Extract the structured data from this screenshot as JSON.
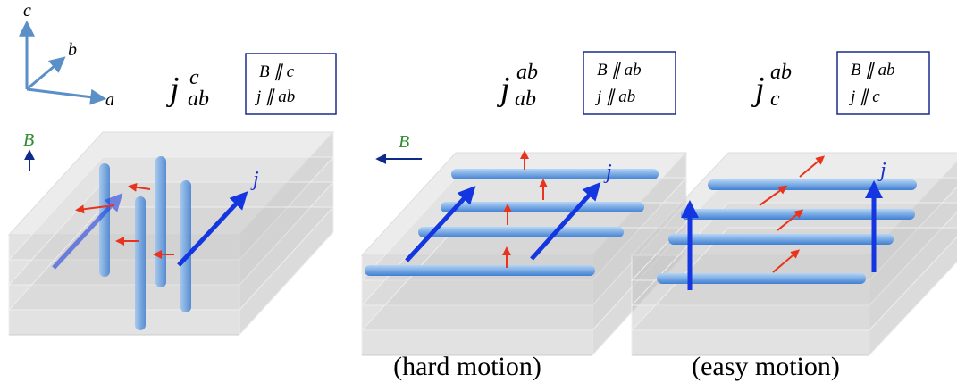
{
  "axes": {
    "c": "c",
    "b": "b",
    "a": "a"
  },
  "panels": [
    {
      "symbol": "j",
      "superscript": "c",
      "subscript": "ab",
      "conditions": [
        "B ∥ c",
        "j ∥ ab"
      ],
      "field_label": "B",
      "current_label": "j"
    },
    {
      "symbol": "j",
      "superscript": "ab",
      "subscript": "ab",
      "conditions": [
        "B ∥ ab",
        "j ∥ ab"
      ],
      "field_label": "B",
      "current_label": "j",
      "caption": "(hard motion)"
    },
    {
      "symbol": "j",
      "superscript": "ab",
      "subscript": "c",
      "conditions": [
        "B ∥ ab",
        "j ∥ c"
      ],
      "current_label": "j",
      "caption": "(easy motion)"
    }
  ]
}
